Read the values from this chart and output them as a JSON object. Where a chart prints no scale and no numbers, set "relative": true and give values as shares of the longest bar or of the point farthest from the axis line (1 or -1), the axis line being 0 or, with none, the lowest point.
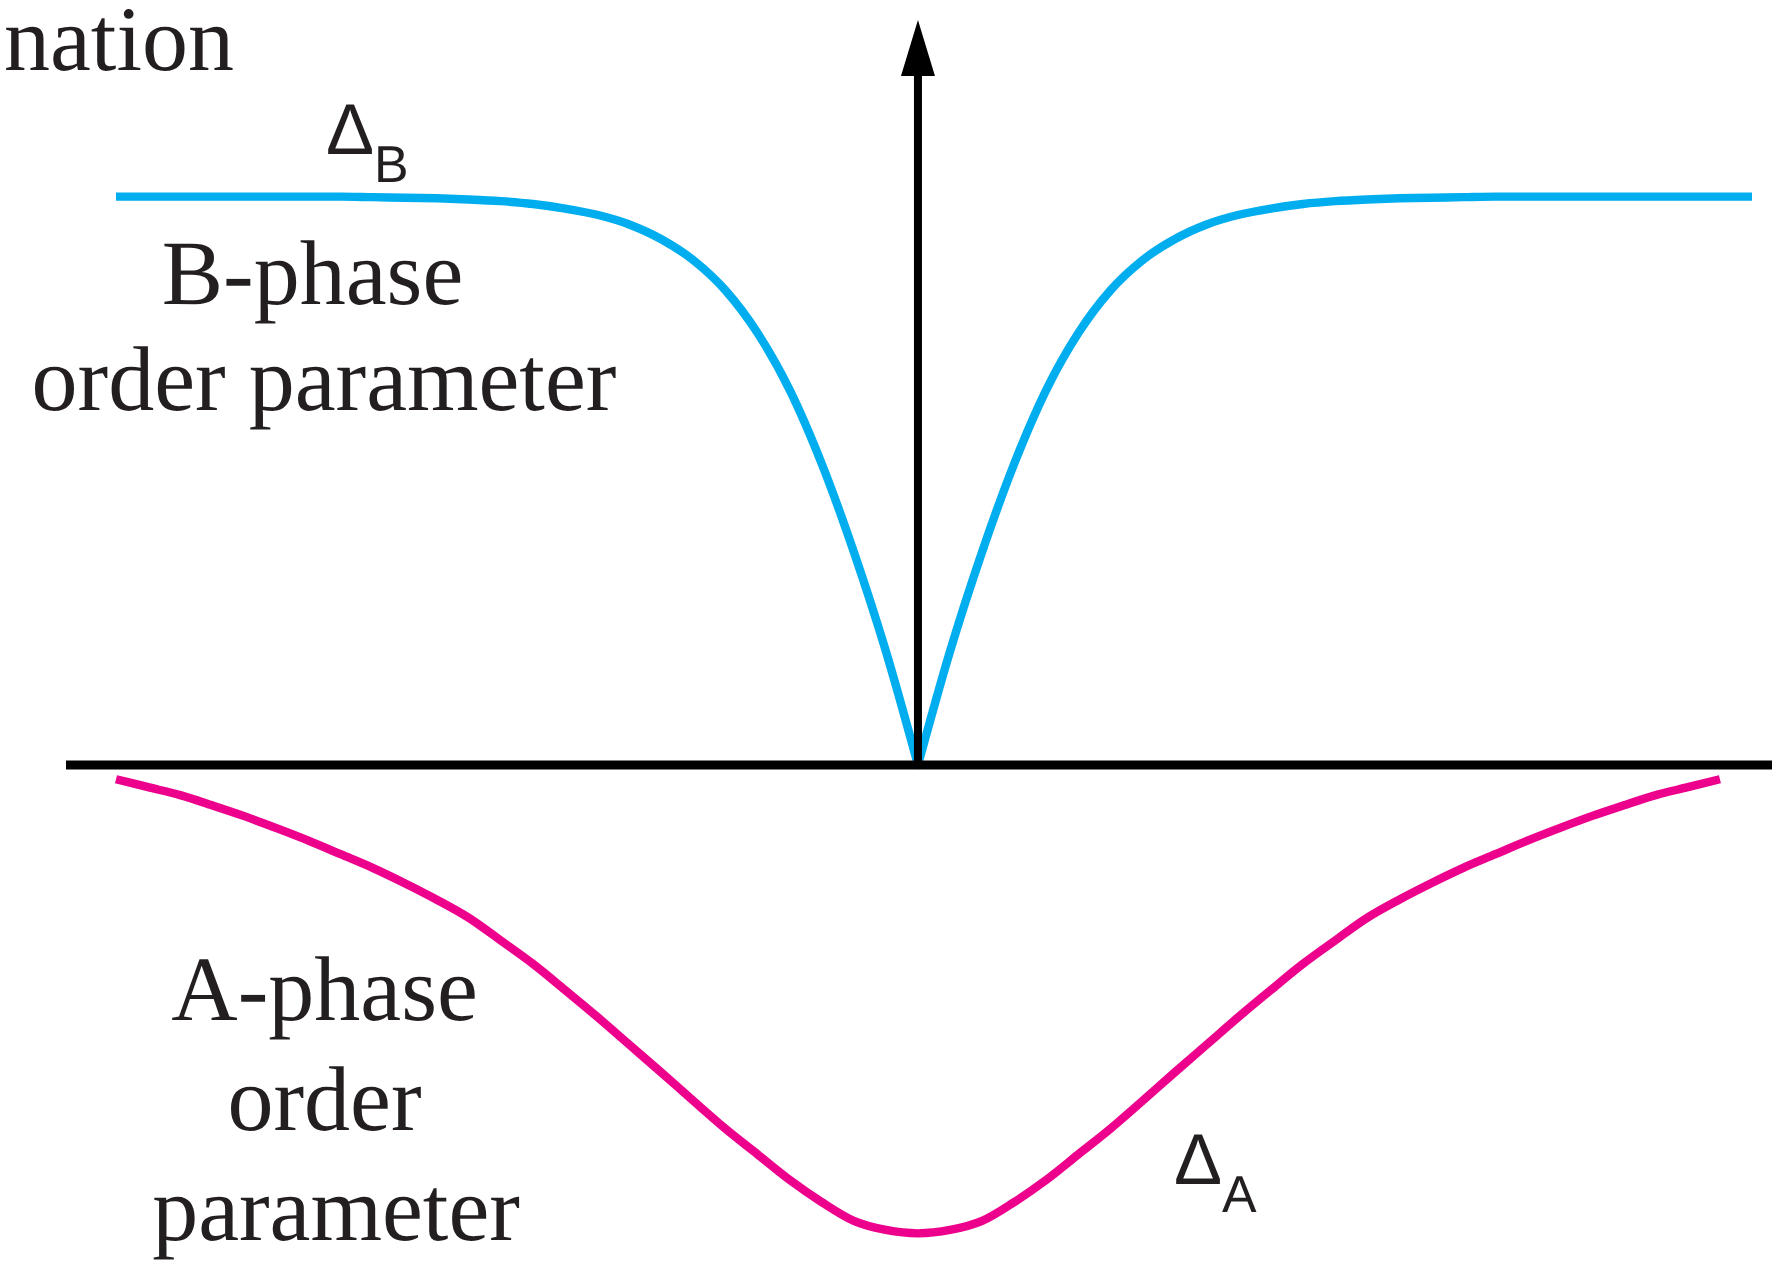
{
  "chart_data": {
    "type": "line",
    "relative": true,
    "categories": [
      null,
      null,
      null,
      null,
      null,
      null,
      null,
      null,
      null,
      null,
      null,
      null,
      null,
      null,
      null,
      null,
      null,
      null,
      null,
      null,
      null,
      null,
      null,
      null,
      null,
      null,
      null,
      null,
      null,
      null,
      null,
      null,
      null,
      null,
      null,
      null,
      null,
      null,
      null,
      null,
      null,
      null,
      null,
      null,
      null,
      null,
      null,
      null,
      null,
      null,
      null,
      null
    ],
    "series": [
      {
        "name": "Δ$_{B}$",
        "color": "#00aeef",
        "values": [
          1,
          1,
          1,
          1,
          1,
          1,
          1,
          1,
          0.999,
          0.998,
          0.997,
          0.995,
          0.992,
          0.987,
          0.979,
          0.968,
          0.951,
          0.925,
          0.888,
          0.835,
          0.76,
          0.66,
          0.53,
          0.375,
          0.2,
          0,
          0.2,
          0.375,
          0.53,
          0.66,
          0.76,
          0.835,
          0.888,
          0.925,
          0.951,
          0.968,
          0.979,
          0.987,
          0.992,
          0.995,
          0.997,
          0.998,
          0.999,
          1,
          1,
          1,
          1,
          1,
          1,
          1,
          1,
          1
        ]
      },
      {
        "name": "Δ$_{A}$",
        "color": "#ec008c",
        "values": [
          -0.025,
          -0.039,
          -0.053,
          -0.071,
          -0.09,
          -0.111,
          -0.133,
          -0.157,
          -0.181,
          -0.208,
          -0.237,
          -0.269,
          -0.309,
          -0.35,
          -0.396,
          -0.443,
          -0.492,
          -0.541,
          -0.591,
          -0.64,
          -0.685,
          -0.73,
          -0.769,
          -0.802,
          -0.818,
          -0.824,
          -0.818,
          -0.802,
          -0.769,
          -0.73,
          -0.685,
          -0.64,
          -0.591,
          -0.541,
          -0.492,
          -0.443,
          -0.396,
          -0.35,
          -0.309,
          -0.269,
          -0.237,
          -0.208,
          -0.181,
          -0.157,
          -0.133,
          -0.111,
          -0.09,
          -0.071,
          -0.053,
          -0.039,
          -0.025,
          null
        ]
      }
    ],
    "annotations": [
      "nation",
      "B-phase\norder parameter",
      "A-phase\norder\nparameter"
    ]
  }
}
